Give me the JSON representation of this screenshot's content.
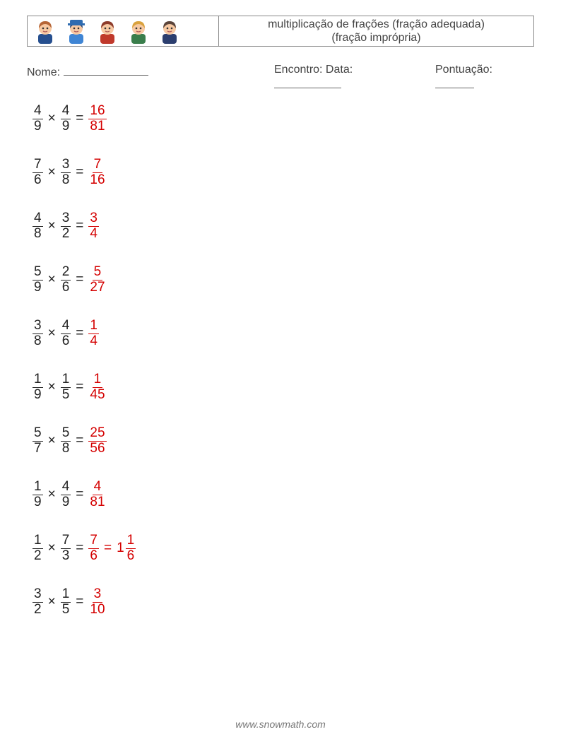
{
  "header": {
    "title_line1": "multiplicação de frações (fração adequada)",
    "title_line2": "(fração imprópria)"
  },
  "info": {
    "name_label": "Nome:",
    "date_label": "Encontro: Data:",
    "score_label": "Pontuação:",
    "blank_width_name": 120,
    "blank_width_date": 95,
    "blank_width_score": 55
  },
  "styling": {
    "text_color": "#333333",
    "answer_color": "#d40000",
    "border_color": "#888888",
    "background_color": "#ffffff",
    "problem_fontsize": 19,
    "header_fontsize": 16,
    "info_fontsize": 16,
    "fraction_bar_width": 1.4,
    "problem_spacing": 28
  },
  "avatars": [
    {
      "hair": "#b56536",
      "skin": "#f7c9a3",
      "shirt": "#264f8f"
    },
    {
      "hair": "#2e4a78",
      "skin": "#f7c9a3",
      "shirt": "#3f85d4",
      "hat": "#2e6bb0"
    },
    {
      "hair": "#8e3c2b",
      "skin": "#f7c9a3",
      "shirt": "#c0392b"
    },
    {
      "hair": "#d9a23e",
      "skin": "#f7c9a3",
      "shirt": "#3a7e4c"
    },
    {
      "hair": "#5b443a",
      "skin": "#f7c9a3",
      "shirt": "#2c3e6e"
    }
  ],
  "problems": [
    {
      "a_num": "4",
      "a_den": "9",
      "b_num": "4",
      "b_den": "9",
      "r_num": "16",
      "r_den": "81"
    },
    {
      "a_num": "7",
      "a_den": "6",
      "b_num": "3",
      "b_den": "8",
      "r_num": "7",
      "r_den": "16"
    },
    {
      "a_num": "4",
      "a_den": "8",
      "b_num": "3",
      "b_den": "2",
      "r_num": "3",
      "r_den": "4"
    },
    {
      "a_num": "5",
      "a_den": "9",
      "b_num": "2",
      "b_den": "6",
      "r_num": "5",
      "r_den": "27"
    },
    {
      "a_num": "3",
      "a_den": "8",
      "b_num": "4",
      "b_den": "6",
      "r_num": "1",
      "r_den": "4"
    },
    {
      "a_num": "1",
      "a_den": "9",
      "b_num": "1",
      "b_den": "5",
      "r_num": "1",
      "r_den": "45"
    },
    {
      "a_num": "5",
      "a_den": "7",
      "b_num": "5",
      "b_den": "8",
      "r_num": "25",
      "r_den": "56"
    },
    {
      "a_num": "1",
      "a_den": "9",
      "b_num": "4",
      "b_den": "9",
      "r_num": "4",
      "r_den": "81"
    },
    {
      "a_num": "1",
      "a_den": "2",
      "b_num": "7",
      "b_den": "3",
      "r_num": "7",
      "r_den": "6",
      "mixed_whole": "1",
      "mixed_num": "1",
      "mixed_den": "6"
    },
    {
      "a_num": "3",
      "a_den": "2",
      "b_num": "1",
      "b_den": "5",
      "r_num": "3",
      "r_den": "10"
    }
  ],
  "footer": "www.snowmath.com"
}
